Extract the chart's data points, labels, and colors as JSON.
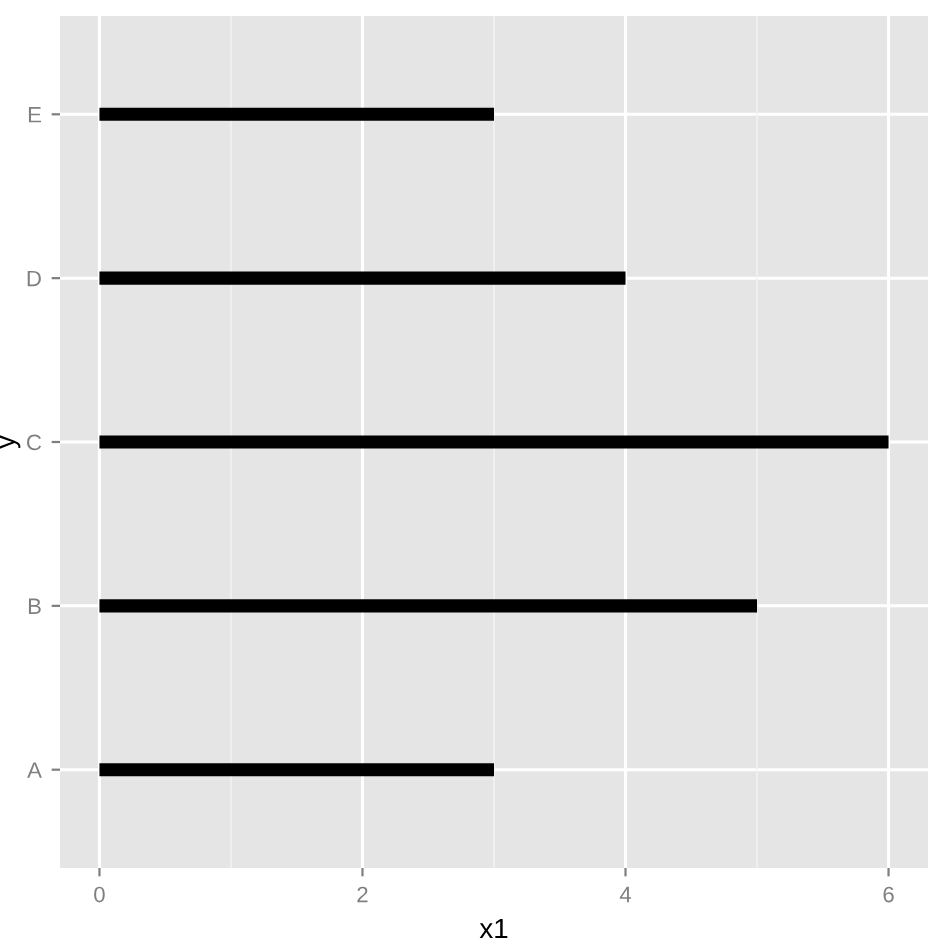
{
  "chart_data": {
    "type": "bar",
    "orientation": "horizontal",
    "categories": [
      "E",
      "D",
      "C",
      "B",
      "A"
    ],
    "values": [
      3,
      4,
      6,
      5,
      3
    ],
    "color": "#000000",
    "xlabel": "x1",
    "ylabel": "y",
    "xlim": [
      -0.3,
      6.3
    ],
    "xticks": [
      0,
      2,
      4,
      6
    ],
    "grid": true
  }
}
